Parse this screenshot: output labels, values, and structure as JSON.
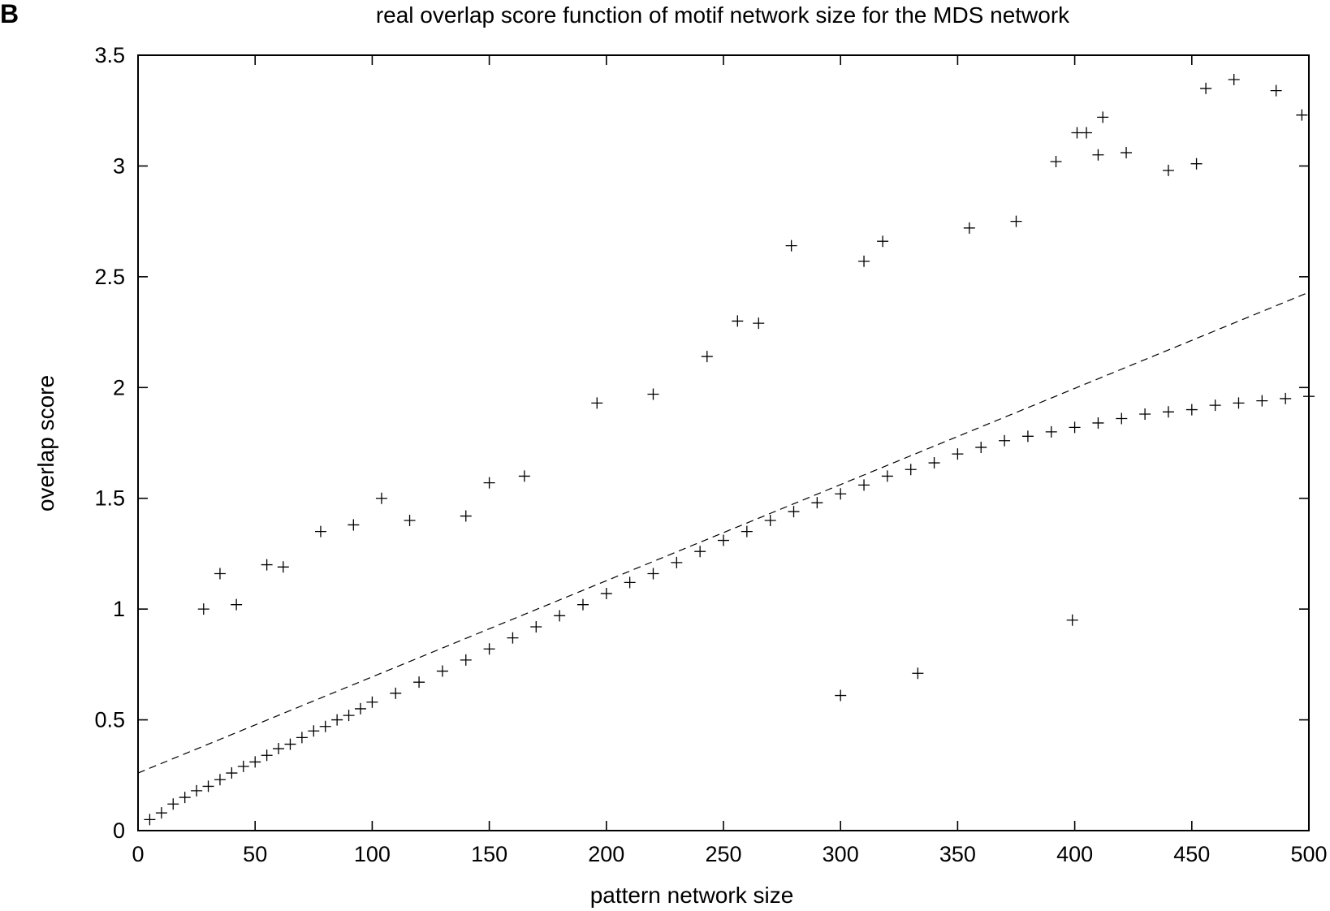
{
  "panel_label": "B",
  "chart_data": {
    "type": "scatter",
    "title": "real overlap score function of motif network size for the MDS network",
    "xlabel": "pattern network size",
    "ylabel": "overlap score",
    "xlim": [
      0,
      500
    ],
    "ylim": [
      0,
      3.5
    ],
    "x_ticks": [
      0,
      50,
      100,
      150,
      200,
      250,
      300,
      350,
      400,
      450,
      500
    ],
    "y_ticks": [
      0,
      0.5,
      1,
      1.5,
      2,
      2.5,
      3,
      3.5
    ],
    "x_tick_labels": [
      "0",
      "50",
      "100",
      "150",
      "200",
      "250",
      "300",
      "350",
      "400",
      "450",
      "500"
    ],
    "y_tick_labels": [
      "0",
      "0.5",
      "1",
      "1.5",
      "2",
      "2.5",
      "3",
      "3.5"
    ],
    "grid": false,
    "marker": "+",
    "marker_color": "#000000",
    "series": [
      {
        "values_description": "dense point cloud; points sampled along trend",
        "x": [
          5,
          10,
          15,
          20,
          25,
          30,
          35,
          40,
          45,
          50,
          55,
          60,
          65,
          70,
          75,
          80,
          85,
          90,
          95,
          100,
          110,
          120,
          130,
          140,
          150,
          160,
          170,
          180,
          190,
          200,
          210,
          220,
          230,
          240,
          250,
          260,
          270,
          280,
          290,
          300,
          310,
          320,
          330,
          340,
          350,
          360,
          370,
          380,
          390,
          400,
          410,
          420,
          430,
          440,
          450,
          460,
          470,
          480,
          490,
          500,
          28,
          35,
          42,
          55,
          62,
          78,
          92,
          104,
          116,
          140,
          150,
          165,
          196,
          220,
          243,
          256,
          265,
          279,
          310,
          318,
          355,
          375,
          392,
          401,
          405,
          410,
          412,
          422,
          440,
          452,
          456,
          468,
          486,
          497,
          399,
          333,
          300
        ],
        "y": [
          0.05,
          0.08,
          0.12,
          0.15,
          0.18,
          0.2,
          0.23,
          0.26,
          0.29,
          0.31,
          0.34,
          0.37,
          0.39,
          0.42,
          0.45,
          0.47,
          0.5,
          0.52,
          0.55,
          0.58,
          0.62,
          0.67,
          0.72,
          0.77,
          0.82,
          0.87,
          0.92,
          0.97,
          1.02,
          1.07,
          1.12,
          1.16,
          1.21,
          1.26,
          1.31,
          1.35,
          1.4,
          1.44,
          1.48,
          1.52,
          1.56,
          1.6,
          1.63,
          1.66,
          1.7,
          1.73,
          1.76,
          1.78,
          1.8,
          1.82,
          1.84,
          1.86,
          1.88,
          1.89,
          1.9,
          1.92,
          1.93,
          1.94,
          1.95,
          1.96,
          1.0,
          1.16,
          1.02,
          1.2,
          1.19,
          1.35,
          1.38,
          1.5,
          1.4,
          1.42,
          1.57,
          1.6,
          1.93,
          1.97,
          2.14,
          2.3,
          2.29,
          2.64,
          2.57,
          2.66,
          2.72,
          2.75,
          3.02,
          3.15,
          3.15,
          3.05,
          3.22,
          3.06,
          2.98,
          3.01,
          3.35,
          3.39,
          3.34,
          3.23,
          0.95,
          0.71,
          0.61
        ]
      }
    ],
    "trend_line": {
      "style": "dashed",
      "x": [
        0,
        500
      ],
      "y": [
        0.26,
        2.43
      ]
    }
  }
}
